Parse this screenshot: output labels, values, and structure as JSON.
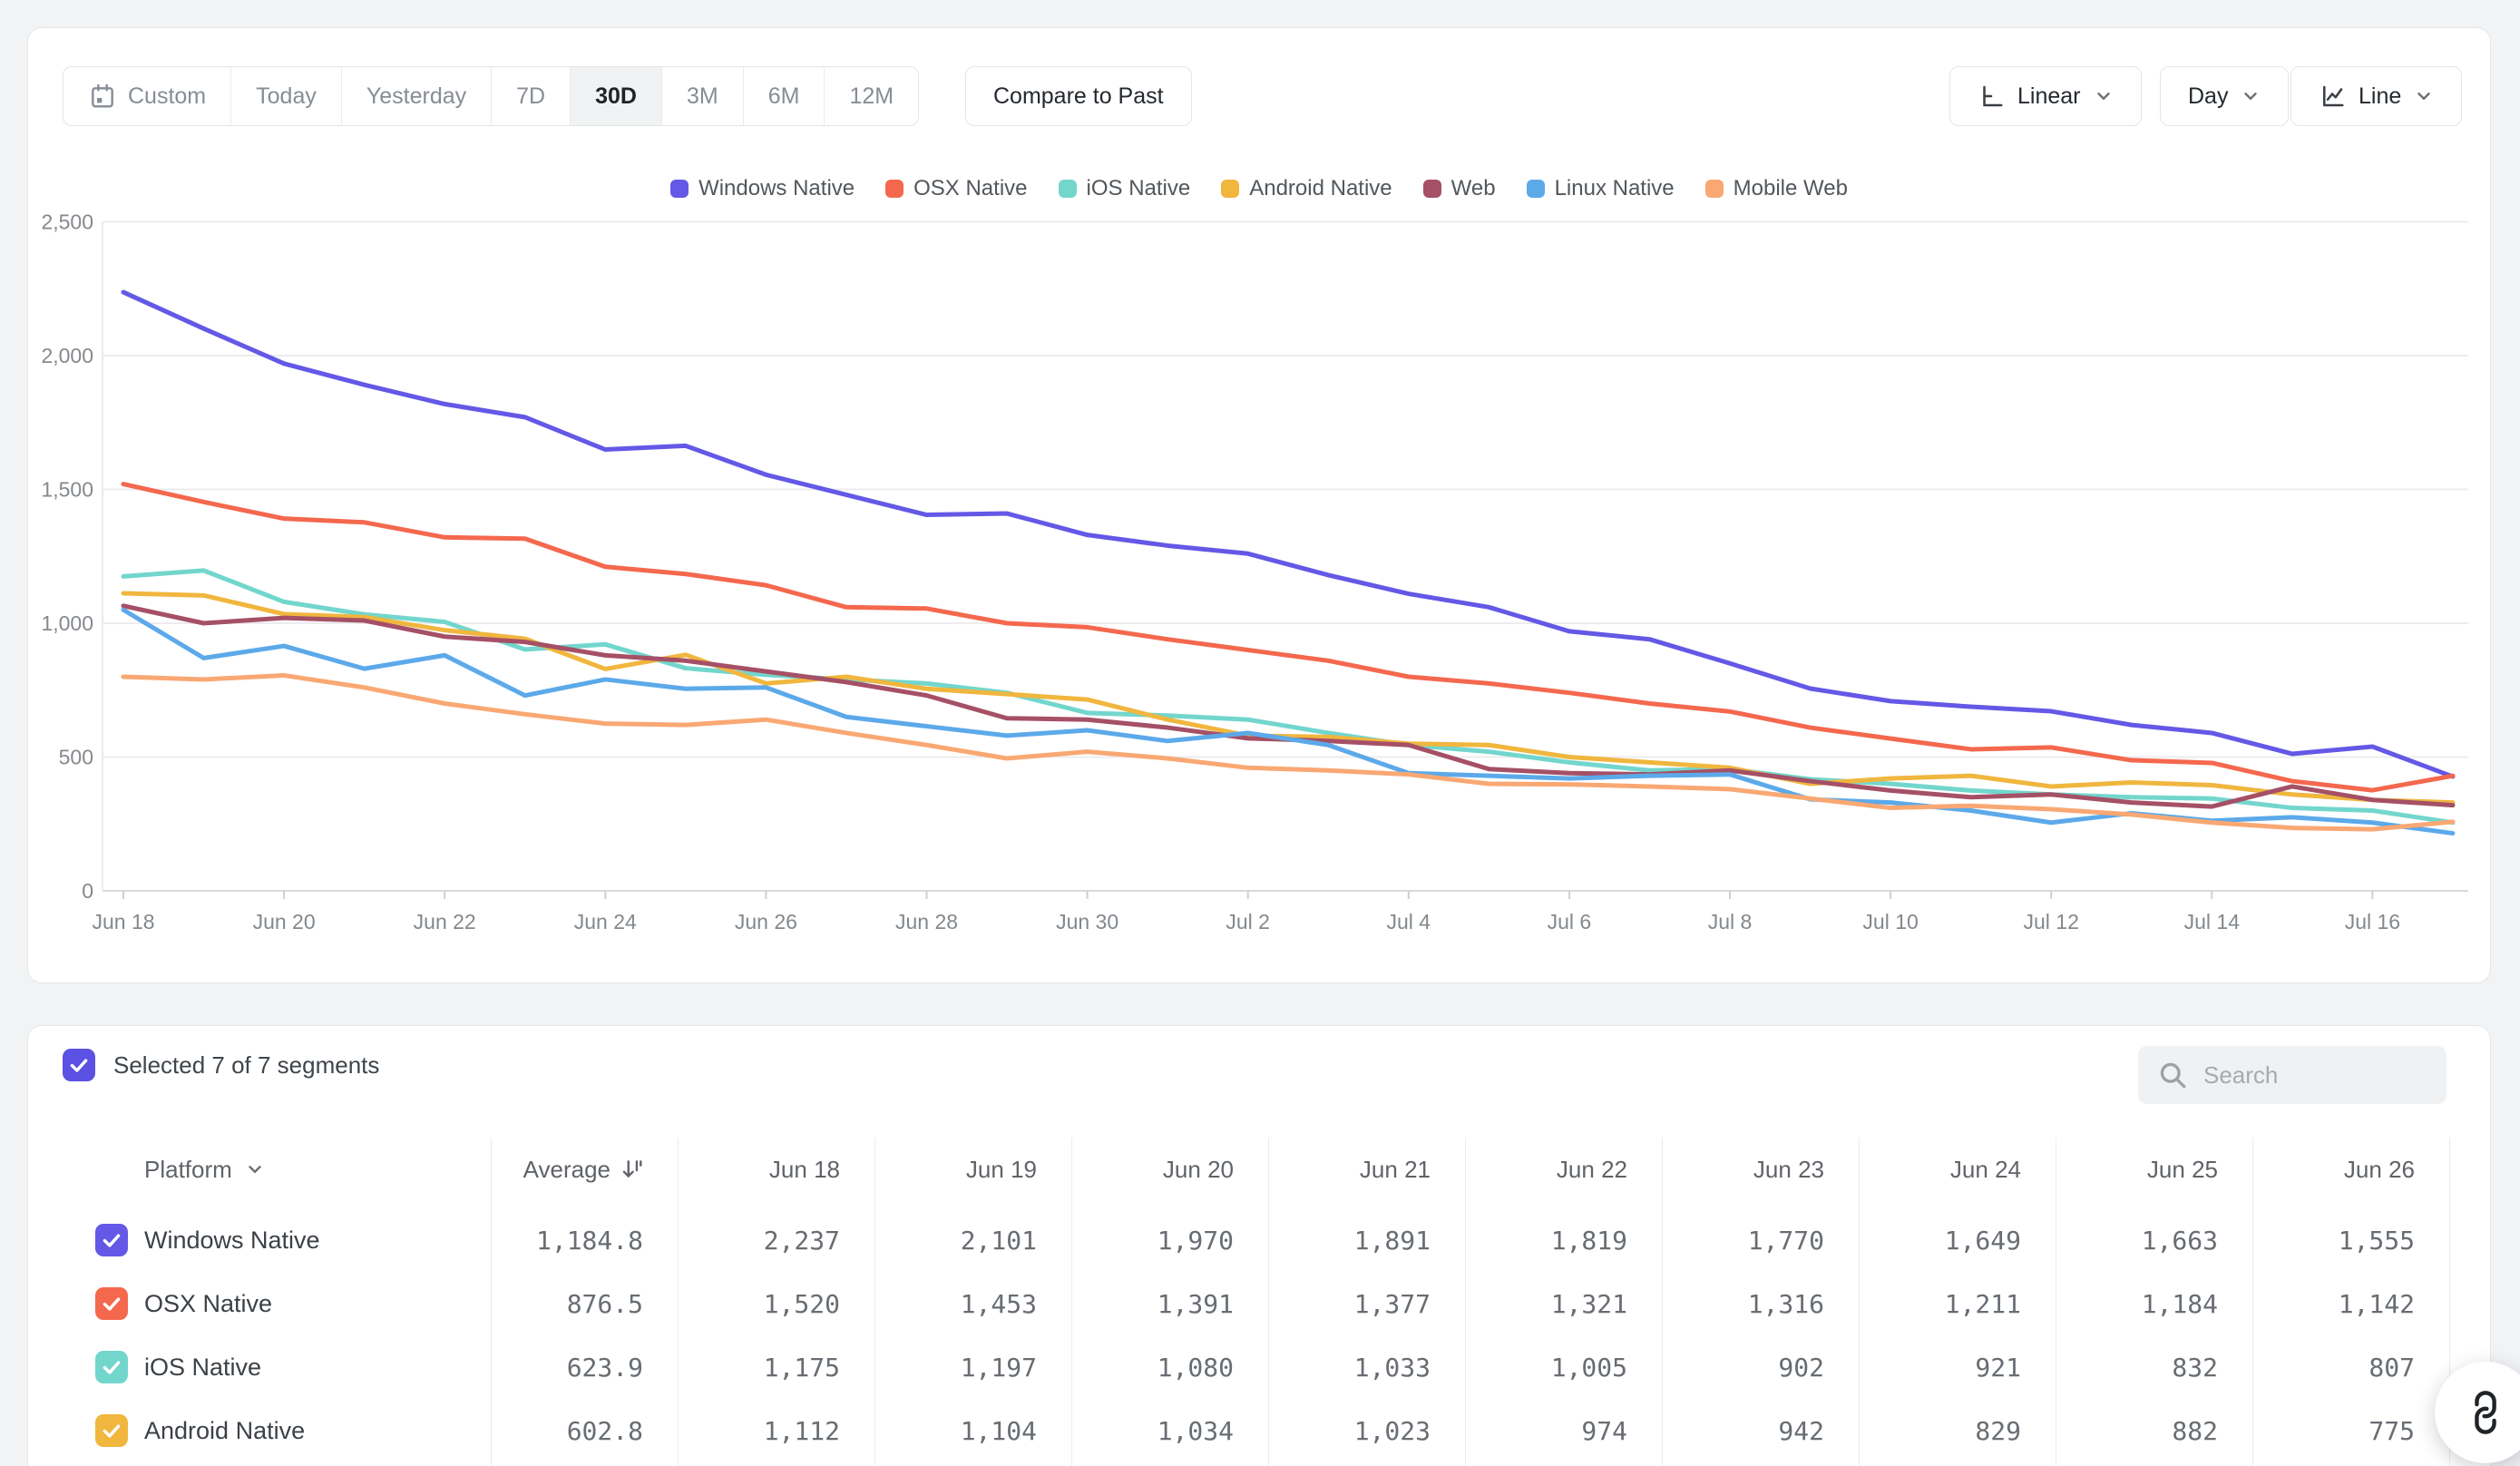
{
  "toolbar": {
    "ranges": [
      "Custom",
      "Today",
      "Yesterday",
      "7D",
      "30D",
      "3M",
      "6M",
      "12M"
    ],
    "active_range": "30D",
    "compare_label": "Compare to Past",
    "scale_label": "Linear",
    "interval_label": "Day",
    "chart_type_label": "Line"
  },
  "chart_data": {
    "type": "line",
    "title": "",
    "xlabel": "",
    "ylabel": "",
    "ylim": [
      0,
      2500
    ],
    "grid": "horizontal",
    "legend_position": "top",
    "x_tick_every": 2,
    "yticks": [
      {
        "v": 0,
        "label": "0"
      },
      {
        "v": 500,
        "label": "500"
      },
      {
        "v": 1000,
        "label": "1,000"
      },
      {
        "v": 1500,
        "label": "1,500"
      },
      {
        "v": 2000,
        "label": "2,000"
      },
      {
        "v": 2500,
        "label": "2,500"
      }
    ],
    "x": [
      "Jun 18",
      "Jun 19",
      "Jun 20",
      "Jun 21",
      "Jun 22",
      "Jun 23",
      "Jun 24",
      "Jun 25",
      "Jun 26",
      "Jun 27",
      "Jun 28",
      "Jun 29",
      "Jun 30",
      "Jul 1",
      "Jul 2",
      "Jul 3",
      "Jul 4",
      "Jul 5",
      "Jul 6",
      "Jul 7",
      "Jul 8",
      "Jul 9",
      "Jul 10",
      "Jul 11",
      "Jul 12",
      "Jul 13",
      "Jul 14",
      "Jul 15",
      "Jul 16",
      "Jul 17"
    ],
    "series": [
      {
        "name": "Windows Native",
        "color": "#6458e6",
        "values": [
          2237,
          2101,
          1970,
          1891,
          1819,
          1770,
          1649,
          1663,
          1555,
          1480,
          1405,
          1410,
          1330,
          1290,
          1260,
          1180,
          1110,
          1060,
          970,
          940,
          850,
          756,
          709,
          688,
          671,
          620,
          590,
          512,
          539,
          427
        ]
      },
      {
        "name": "OSX Native",
        "color": "#f4684e",
        "values": [
          1520,
          1453,
          1391,
          1377,
          1321,
          1316,
          1211,
          1184,
          1142,
          1060,
          1055,
          1000,
          985,
          940,
          900,
          860,
          800,
          775,
          740,
          700,
          670,
          610,
          569,
          529,
          536,
          488,
          478,
          410,
          376,
          430
        ]
      },
      {
        "name": "iOS Native",
        "color": "#72d6cd",
        "values": [
          1175,
          1197,
          1080,
          1033,
          1005,
          902,
          921,
          832,
          807,
          790,
          775,
          740,
          665,
          655,
          640,
          590,
          545,
          520,
          480,
          450,
          455,
          417,
          400,
          375,
          360,
          350,
          345,
          310,
          300,
          255
        ]
      },
      {
        "name": "Android Native",
        "color": "#f0b63e",
        "values": [
          1112,
          1104,
          1034,
          1023,
          974,
          942,
          829,
          882,
          775,
          800,
          755,
          735,
          715,
          640,
          580,
          575,
          550,
          545,
          500,
          480,
          460,
          400,
          420,
          430,
          390,
          405,
          395,
          360,
          340,
          330
        ]
      },
      {
        "name": "Web",
        "color": "#a55066",
        "values": [
          1065,
          1000,
          1020,
          1010,
          950,
          930,
          880,
          860,
          820,
          780,
          730,
          645,
          640,
          610,
          570,
          560,
          545,
          455,
          440,
          435,
          450,
          410,
          375,
          350,
          360,
          330,
          315,
          390,
          340,
          320
        ]
      },
      {
        "name": "Linux Native",
        "color": "#5ca9ea",
        "values": [
          1050,
          870,
          915,
          830,
          880,
          730,
          790,
          755,
          760,
          650,
          615,
          580,
          600,
          560,
          590,
          545,
          440,
          430,
          420,
          430,
          435,
          342,
          330,
          300,
          255,
          290,
          262,
          275,
          255,
          215
        ]
      },
      {
        "name": "Mobile Web",
        "color": "#f9a873",
        "values": [
          800,
          790,
          805,
          760,
          700,
          660,
          625,
          620,
          640,
          590,
          545,
          495,
          520,
          495,
          460,
          450,
          435,
          400,
          398,
          390,
          380,
          345,
          310,
          318,
          305,
          285,
          255,
          235,
          230,
          258
        ]
      }
    ]
  },
  "table": {
    "selected_summary": "Selected 7 of 7 segments",
    "select_all_color": "#5b51e3",
    "search_placeholder": "Search",
    "platform_header": "Platform",
    "average_header": "Average",
    "date_columns": [
      "Jun 18",
      "Jun 19",
      "Jun 20",
      "Jun 21",
      "Jun 22",
      "Jun 23",
      "Jun 24",
      "Jun 25",
      "Jun 26"
    ],
    "rows": [
      {
        "name": "Windows Native",
        "color": "#6458e6",
        "average": "1,184.8",
        "values": [
          "2,237",
          "2,101",
          "1,970",
          "1,891",
          "1,819",
          "1,770",
          "1,649",
          "1,663",
          "1,555"
        ]
      },
      {
        "name": "OSX Native",
        "color": "#f4684e",
        "average": "876.5",
        "values": [
          "1,520",
          "1,453",
          "1,391",
          "1,377",
          "1,321",
          "1,316",
          "1,211",
          "1,184",
          "1,142"
        ]
      },
      {
        "name": "iOS Native",
        "color": "#72d6cd",
        "average": "623.9",
        "values": [
          "1,175",
          "1,197",
          "1,080",
          "1,033",
          "1,005",
          "902",
          "921",
          "832",
          "807"
        ]
      },
      {
        "name": "Android Native",
        "color": "#f0b63e",
        "average": "602.8",
        "values": [
          "1,112",
          "1,104",
          "1,034",
          "1,023",
          "974",
          "942",
          "829",
          "882",
          "775"
        ]
      }
    ]
  }
}
